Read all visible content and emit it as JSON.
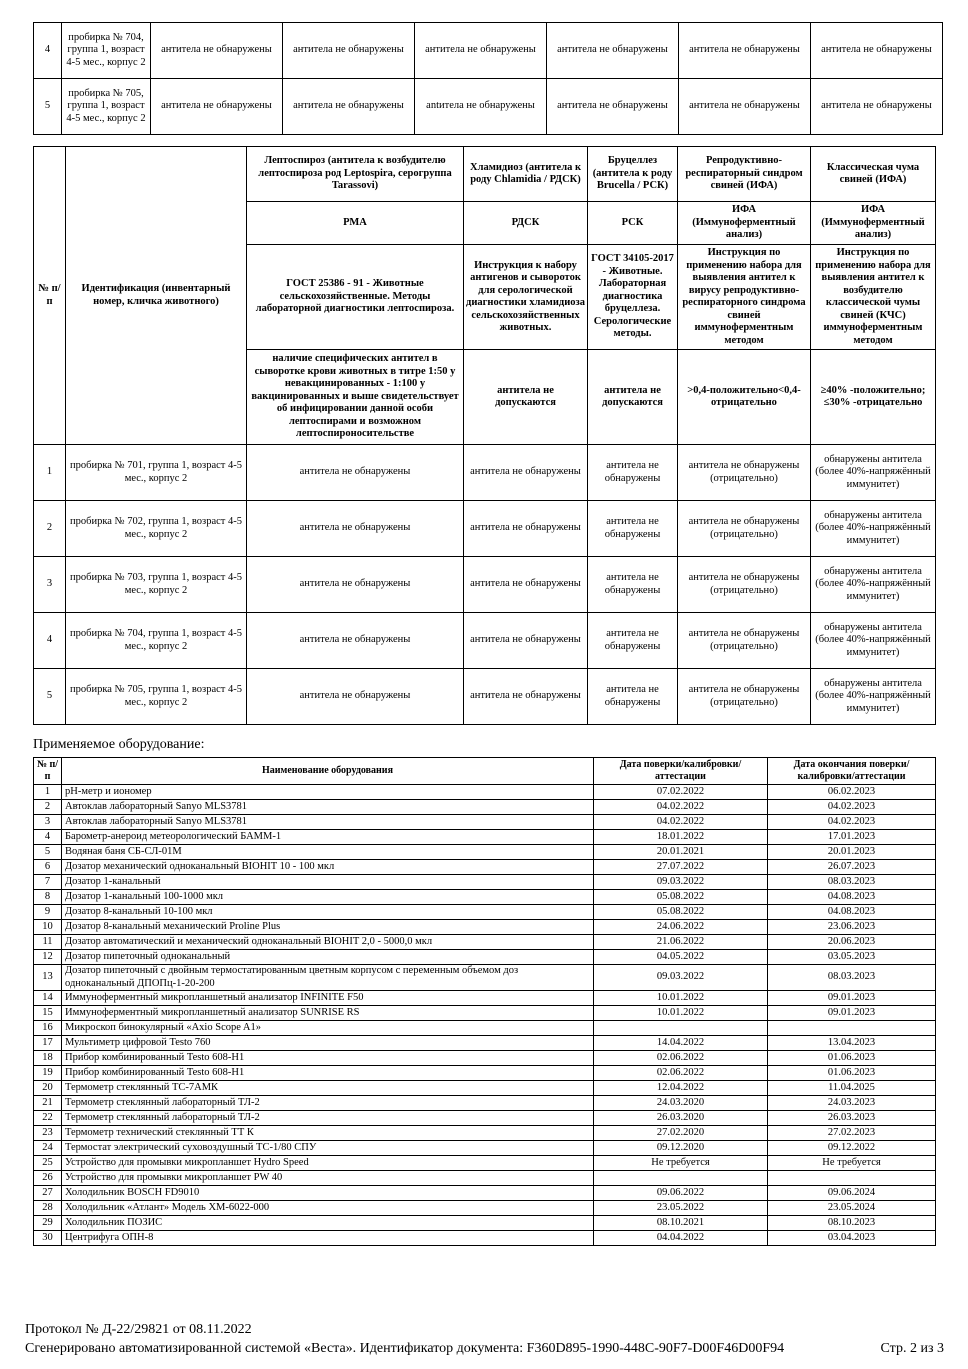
{
  "top_table": {
    "rows": [
      {
        "n": "4",
        "id": "пробирка № 704, группа 1, возраст 4-5 мес., корпус 2",
        "results": [
          "антитела не обнаружены",
          "антитела не обнаружены",
          "антитела не обнаружены",
          "антитела не обнаружены",
          "антитела не обнаружены",
          "антитела не обнаружены"
        ]
      },
      {
        "n": "5",
        "id": "пробирка № 705, группа 1, возраст 4-5 мес., корпус 2",
        "results": [
          "антитела не обнаружены",
          "антитела не обнаружены",
          "antитела не обнаружены",
          "антитела не обнаружены",
          "антитела не обнаружены",
          "антитела не обнаружены"
        ]
      }
    ]
  },
  "results_table": {
    "num_header": "№ п/п",
    "id_header": "Идентификация (инвентарный номер, кличка животного)",
    "diseases": [
      "Лептоспироз (антитела к возбудителю лептоспироза род Leptospira, серогруппа Tarassovi)",
      "Хламидиоз (антитела к роду Chlamidia / РДСК)",
      "Бруцеллез (антитела к роду Brucella / РСК)",
      "Репродуктивно-респираторный синдром свиней (ИФА)",
      "Классическая чума свиней (ИФА)"
    ],
    "methods": [
      "РМА",
      "РДСК",
      "РСК",
      "ИФА (Иммуноферментный анализ)",
      "ИФА (Иммуноферментный анализ)"
    ],
    "standards": [
      "ГОСТ 25386 - 91 - Животные сельскохозяйственные. Методы лабораторной диагностики лептоспироза.",
      "Инструкция к набору антигенов и сывороток для серологической диагностики хламидиоза сельскохозяйственных животных.",
      "ГОСТ 34105-2017 - Животные. Лабораторная диагностика бруцеллеза. Серологические методы.",
      "Инструкция по применению набора для выявления антител к вирусу репродуктивно-респираторного синдрома свиней иммуноферментным методом",
      "Инструкция по применению набора для выявления антител к возбудителю классической чумы свиней (КЧС) иммуноферментным методом"
    ],
    "norms": [
      "наличие специфических антител в сыворотке крови животных в титре 1:50 у невакцинированных - 1:100 у вакцинированных и выше свидетельствует об инфицировании данной особи лептоспирами и возможном лептоспироносительстве",
      "антитела не допускаются",
      "антитела не допускаются",
      ">0,4-положительно<0,4-отрицательно",
      "≥40% -положительно; ≤30% -отрицательно"
    ],
    "rows": [
      {
        "n": "1",
        "id": "пробирка № 701, группа 1, возраст 4-5 мес., корпус 2",
        "results": [
          "антитела не обнаружены",
          "антитела не обнаружены",
          "антитела не обнаружены",
          "антитела не обнаружены (отрицательно)",
          "обнаружены антитела (более 40%-напряжённый иммунитет)"
        ]
      },
      {
        "n": "2",
        "id": "пробирка № 702, группа 1, возраст 4-5 мес., корпус 2",
        "results": [
          "антитела не обнаружены",
          "антитела не обнаружены",
          "антитела не обнаружены",
          "антитела не обнаружены (отрицательно)",
          "обнаружены антитела (более 40%-напряжённый иммунитет)"
        ]
      },
      {
        "n": "3",
        "id": "пробирка № 703, группа 1, возраст 4-5 мес., корпус 2",
        "results": [
          "антитела не обнаружены",
          "антитела не обнаружены",
          "антитела не обнаружены",
          "антитела не обнаружены (отрицательно)",
          "обнаружены антитела (более 40%-напряжённый иммунитет)"
        ]
      },
      {
        "n": "4",
        "id": "пробирка № 704, группа 1, возраст 4-5 мес., корпус 2",
        "results": [
          "антитела не обнаружены",
          "антитела не обнаружены",
          "антитела не обнаружены",
          "антитела не обнаружены (отрицательно)",
          "обнаружены антитела (более 40%-напряжённый иммунитет)"
        ]
      },
      {
        "n": "5",
        "id": "пробирка № 705, группа 1, возраст 4-5 мес., корпус 2",
        "results": [
          "антитела не обнаружены",
          "антитела не обнаружены",
          "антитела не обнаружены",
          "антитела не обнаружены (отрицательно)",
          "обнаружены антитела (более 40%-напряжённый иммунитет)"
        ]
      }
    ]
  },
  "equipment": {
    "label": "Применяемое оборудование:",
    "headers": [
      "№ п/п",
      "Наименование оборудования",
      "Дата поверки/калибровки/аттестации",
      "Дата окончания поверки/калибровки/аттестации"
    ],
    "rows": [
      [
        "1",
        "pH-метр и иономер",
        "07.02.2022",
        "06.02.2023"
      ],
      [
        "2",
        "Автоклав лабораторный Sanyo MLS3781",
        "04.02.2022",
        "04.02.2023"
      ],
      [
        "3",
        "Автоклав лабораторный Sanyo MLS3781",
        "04.02.2022",
        "04.02.2023"
      ],
      [
        "4",
        "Барометр-анероид метеорологический БАММ-1",
        "18.01.2022",
        "17.01.2023"
      ],
      [
        "5",
        "Водяная баня СБ-СЛ-01М",
        "20.01.2021",
        "20.01.2023"
      ],
      [
        "6",
        "Дозатор механический одноканальный BIOHIT 10 - 100 мкл",
        "27.07.2022",
        "26.07.2023"
      ],
      [
        "7",
        "Дозатор 1-канальный",
        "09.03.2022",
        "08.03.2023"
      ],
      [
        "8",
        "Дозатор 1-канальный 100-1000 мкл",
        "05.08.2022",
        "04.08.2023"
      ],
      [
        "9",
        "Дозатор 8-канальный 10-100 мкл",
        "05.08.2022",
        "04.08.2023"
      ],
      [
        "10",
        "Дозатор 8-канальный механический Proline Plus",
        "24.06.2022",
        "23.06.2023"
      ],
      [
        "11",
        "Дозатор автоматический и механический одноканальный BIOHIT 2,0 - 5000,0 мкл",
        "21.06.2022",
        "20.06.2023"
      ],
      [
        "12",
        "Дозатор пипеточный одноканальный",
        "04.05.2022",
        "03.05.2023"
      ],
      [
        "13",
        "Дозатор пипеточный с двойным термостатированным цветным корпусом с переменным объемом доз одноканальный ДПОПц-1-20-200",
        "09.03.2022",
        "08.03.2023"
      ],
      [
        "14",
        "Иммуноферментный микропланшетный анализатор INFINITE F50",
        "10.01.2022",
        "09.01.2023"
      ],
      [
        "15",
        "Иммуноферментный микропланшетный анализатор SUNRISE RS",
        "10.01.2022",
        "09.01.2023"
      ],
      [
        "16",
        "Микроскоп бинокулярный «Axio Scope A1»",
        "",
        ""
      ],
      [
        "17",
        "Мультиметр цифровой Testo 760",
        "14.04.2022",
        "13.04.2023"
      ],
      [
        "18",
        "Прибор комбинированный Testo 608-H1",
        "02.06.2022",
        "01.06.2023"
      ],
      [
        "19",
        "Прибор комбинированный Testo 608-H1",
        "02.06.2022",
        "01.06.2023"
      ],
      [
        "20",
        "Термометр стеклянный ТС-7АМК",
        "12.04.2022",
        "11.04.2025"
      ],
      [
        "21",
        "Термометр стеклянный лабораторный ТЛ-2",
        "24.03.2020",
        "24.03.2023"
      ],
      [
        "22",
        "Термометр стеклянный лабораторный ТЛ-2",
        "26.03.2020",
        "26.03.2023"
      ],
      [
        "23",
        "Термометр технический стеклянный ТТ К",
        "27.02.2020",
        "27.02.2023"
      ],
      [
        "24",
        "Термостат электрический суховоздушный ТС-1/80 СПУ",
        "09.12.2020",
        "09.12.2022"
      ],
      [
        "25",
        "Устройство для промывки микропланшет Hydro Speed",
        "Не требуется",
        "Не требуется"
      ],
      [
        "26",
        "Устройство для промывки микропланшет PW 40",
        "",
        ""
      ],
      [
        "27",
        "Холодильник BOSCH FD9010",
        "09.06.2022",
        "09.06.2024"
      ],
      [
        "28",
        "Холодильник «Атлант» Модель ХМ-6022-000",
        "23.05.2022",
        "23.05.2024"
      ],
      [
        "29",
        "Холодильник ПОЗИС",
        "08.10.2021",
        "08.10.2023"
      ],
      [
        "30",
        "Центрифуга ОПН-8",
        "04.04.2022",
        "03.04.2023"
      ]
    ]
  },
  "footer": {
    "protocol": "Протокол № Д-22/29821 от 08.11.2022",
    "generated": "Сгенерировано автоматизированной системой «Веста». Идентификатор документа: F360D895-1990-448C-90F7-D00F46D00F94",
    "page": "Стр. 2 из 3"
  }
}
